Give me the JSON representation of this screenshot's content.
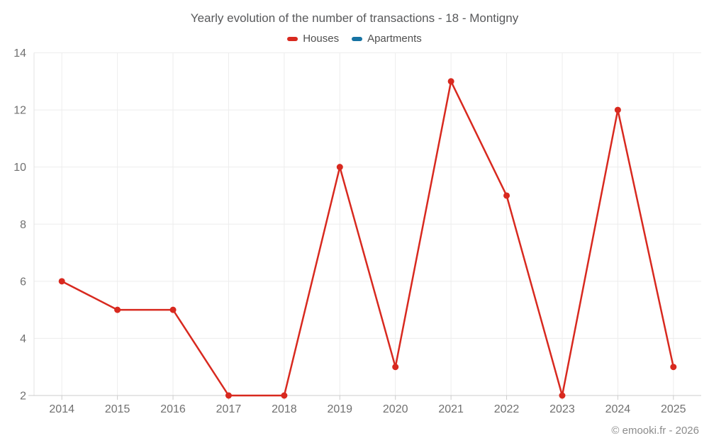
{
  "chart": {
    "title": "Yearly evolution of the number of transactions - 18 - Montigny"
  },
  "footer": {
    "copyright": "© emooki.fr - 2026"
  },
  "chart_data": {
    "type": "line",
    "title": "Yearly evolution of the number of transactions - 18 - Montigny",
    "categories": [
      "2014",
      "2015",
      "2016",
      "2017",
      "2018",
      "2019",
      "2020",
      "2021",
      "2022",
      "2023",
      "2024",
      "2025"
    ],
    "series": [
      {
        "name": "Houses",
        "color": "#d8291f",
        "values": [
          6,
          5,
          5,
          2,
          2,
          10,
          3,
          13,
          9,
          2,
          12,
          3
        ]
      },
      {
        "name": "Apartments",
        "color": "#1673a3",
        "values": []
      }
    ],
    "xlabel": "",
    "ylabel": "",
    "ylim": [
      2,
      14
    ],
    "ytick_step": 2,
    "grid": true,
    "legend_position": "top",
    "marker_radius": 4.5,
    "line_width": 2.5,
    "colors": {
      "grid_line": "#ededed",
      "x_axis_line": "#cccccc",
      "y_axis_line": "#e3e3e3",
      "tick_label": "#707070"
    }
  }
}
